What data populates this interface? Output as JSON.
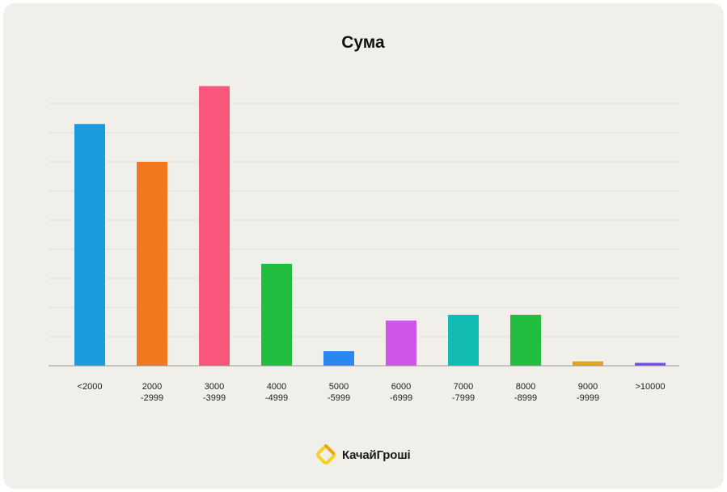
{
  "chart_data": {
    "type": "bar",
    "title": "Сума",
    "xlabel": "",
    "ylabel": "",
    "grid": true,
    "legend": "none",
    "ylim": [
      0,
      100
    ],
    "categories": [
      [
        "<2000"
      ],
      [
        "2000",
        "-2999"
      ],
      [
        "3000",
        "-3999"
      ],
      [
        "4000",
        "-4999"
      ],
      [
        "5000",
        "-5999"
      ],
      [
        "6000",
        "-6999"
      ],
      [
        "7000",
        "-7999"
      ],
      [
        "8000",
        "-8999"
      ],
      [
        "9000",
        "-9999"
      ],
      [
        ">10000"
      ]
    ],
    "values": [
      83,
      70,
      96,
      35,
      5,
      15.5,
      17.5,
      17.5,
      1.5,
      1
    ],
    "colors": [
      "#1a9be0",
      "#f1781d",
      "#f8567b",
      "#21bd3e",
      "#2a86f0",
      "#cf55ea",
      "#13bcb1",
      "#22bd3f",
      "#e3a41d",
      "#6d4ae6"
    ]
  },
  "brand": {
    "name": "КачайГроші",
    "logo_icon": "diamond-logo-icon",
    "logo_colors": [
      "#f6d21e",
      "#f0a31a"
    ]
  }
}
